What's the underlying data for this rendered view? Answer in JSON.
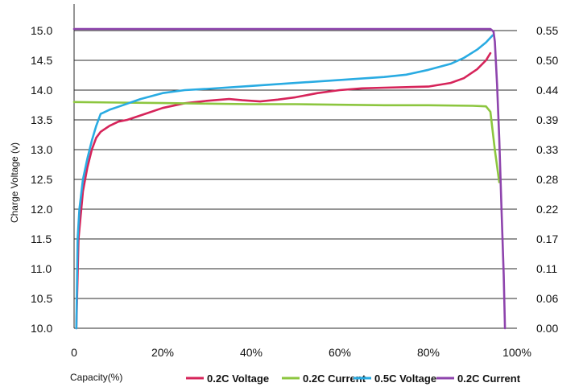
{
  "chart_data": {
    "type": "line",
    "xlabel": "Capacity(%)",
    "ylabel": "Charge Voltage (v)",
    "y2label": "",
    "x_ticks": [
      "0",
      "20%",
      "40%",
      "60%",
      "80%",
      "100%"
    ],
    "y_ticks": [
      "10.0",
      "10.5",
      "11.0",
      "11.5",
      "12.0",
      "12.5",
      "13.0",
      "13.5",
      "14.0",
      "14.5",
      "15.0"
    ],
    "y2_ticks": [
      "0.00",
      "0.06",
      "0.11",
      "0.17",
      "0.22",
      "0.28",
      "0.33",
      "0.39",
      "0.44",
      "0.50",
      "0.55"
    ],
    "xlim": [
      0,
      100
    ],
    "ylim": [
      10.0,
      15.0
    ],
    "y2lim": [
      0.0,
      0.55
    ],
    "grid": "horizontal",
    "legend_position": "bottom",
    "series": [
      {
        "name": "0.2C Voltage",
        "axis": "left",
        "color": "#d6245a",
        "points": [
          [
            0.5,
            10.0
          ],
          [
            1,
            11.5
          ],
          [
            2,
            12.3
          ],
          [
            3,
            12.7
          ],
          [
            4,
            13.0
          ],
          [
            5,
            13.2
          ],
          [
            6,
            13.3
          ],
          [
            8,
            13.4
          ],
          [
            10,
            13.47
          ],
          [
            12,
            13.5
          ],
          [
            16,
            13.6
          ],
          [
            20,
            13.7
          ],
          [
            25,
            13.78
          ],
          [
            30,
            13.82
          ],
          [
            35,
            13.85
          ],
          [
            38,
            13.83
          ],
          [
            42,
            13.81
          ],
          [
            46,
            13.84
          ],
          [
            50,
            13.88
          ],
          [
            55,
            13.95
          ],
          [
            60,
            14.0
          ],
          [
            65,
            14.03
          ],
          [
            70,
            14.04
          ],
          [
            75,
            14.05
          ],
          [
            80,
            14.06
          ],
          [
            85,
            14.12
          ],
          [
            88,
            14.2
          ],
          [
            91,
            14.35
          ],
          [
            93,
            14.5
          ],
          [
            94,
            14.62
          ]
        ]
      },
      {
        "name": "0.2C Current",
        "axis": "right",
        "color": "#8cc63f",
        "points": [
          [
            0,
            0.418
          ],
          [
            10,
            0.417
          ],
          [
            20,
            0.416
          ],
          [
            30,
            0.415
          ],
          [
            40,
            0.414
          ],
          [
            50,
            0.414
          ],
          [
            60,
            0.413
          ],
          [
            70,
            0.412
          ],
          [
            80,
            0.412
          ],
          [
            90,
            0.411
          ],
          [
            93,
            0.41
          ],
          [
            94,
            0.4
          ],
          [
            95,
            0.33
          ],
          [
            96,
            0.27
          ]
        ]
      },
      {
        "name": "0.5C Voltage",
        "axis": "left",
        "color": "#29abe2",
        "points": [
          [
            0.5,
            10.0
          ],
          [
            0.8,
            11.5
          ],
          [
            1.2,
            12.0
          ],
          [
            2,
            12.5
          ],
          [
            3,
            12.85
          ],
          [
            4,
            13.15
          ],
          [
            5,
            13.4
          ],
          [
            6,
            13.6
          ],
          [
            8,
            13.67
          ],
          [
            10,
            13.72
          ],
          [
            15,
            13.85
          ],
          [
            20,
            13.95
          ],
          [
            25,
            14.0
          ],
          [
            30,
            14.02
          ],
          [
            40,
            14.07
          ],
          [
            50,
            14.12
          ],
          [
            60,
            14.17
          ],
          [
            70,
            14.22
          ],
          [
            75,
            14.26
          ],
          [
            80,
            14.34
          ],
          [
            85,
            14.44
          ],
          [
            88,
            14.54
          ],
          [
            91,
            14.68
          ],
          [
            93,
            14.8
          ],
          [
            94.5,
            14.92
          ]
        ]
      },
      {
        "name": "0.2C Current",
        "axis": "right",
        "color": "#8e44ad",
        "points": [
          [
            0,
            0.553
          ],
          [
            20,
            0.553
          ],
          [
            40,
            0.553
          ],
          [
            60,
            0.553
          ],
          [
            80,
            0.553
          ],
          [
            90,
            0.553
          ],
          [
            94,
            0.553
          ],
          [
            94.7,
            0.548
          ],
          [
            95,
            0.53
          ],
          [
            95.5,
            0.45
          ],
          [
            96,
            0.35
          ],
          [
            96.5,
            0.22
          ],
          [
            97,
            0.1
          ],
          [
            97.3,
            0.0
          ]
        ]
      }
    ]
  }
}
